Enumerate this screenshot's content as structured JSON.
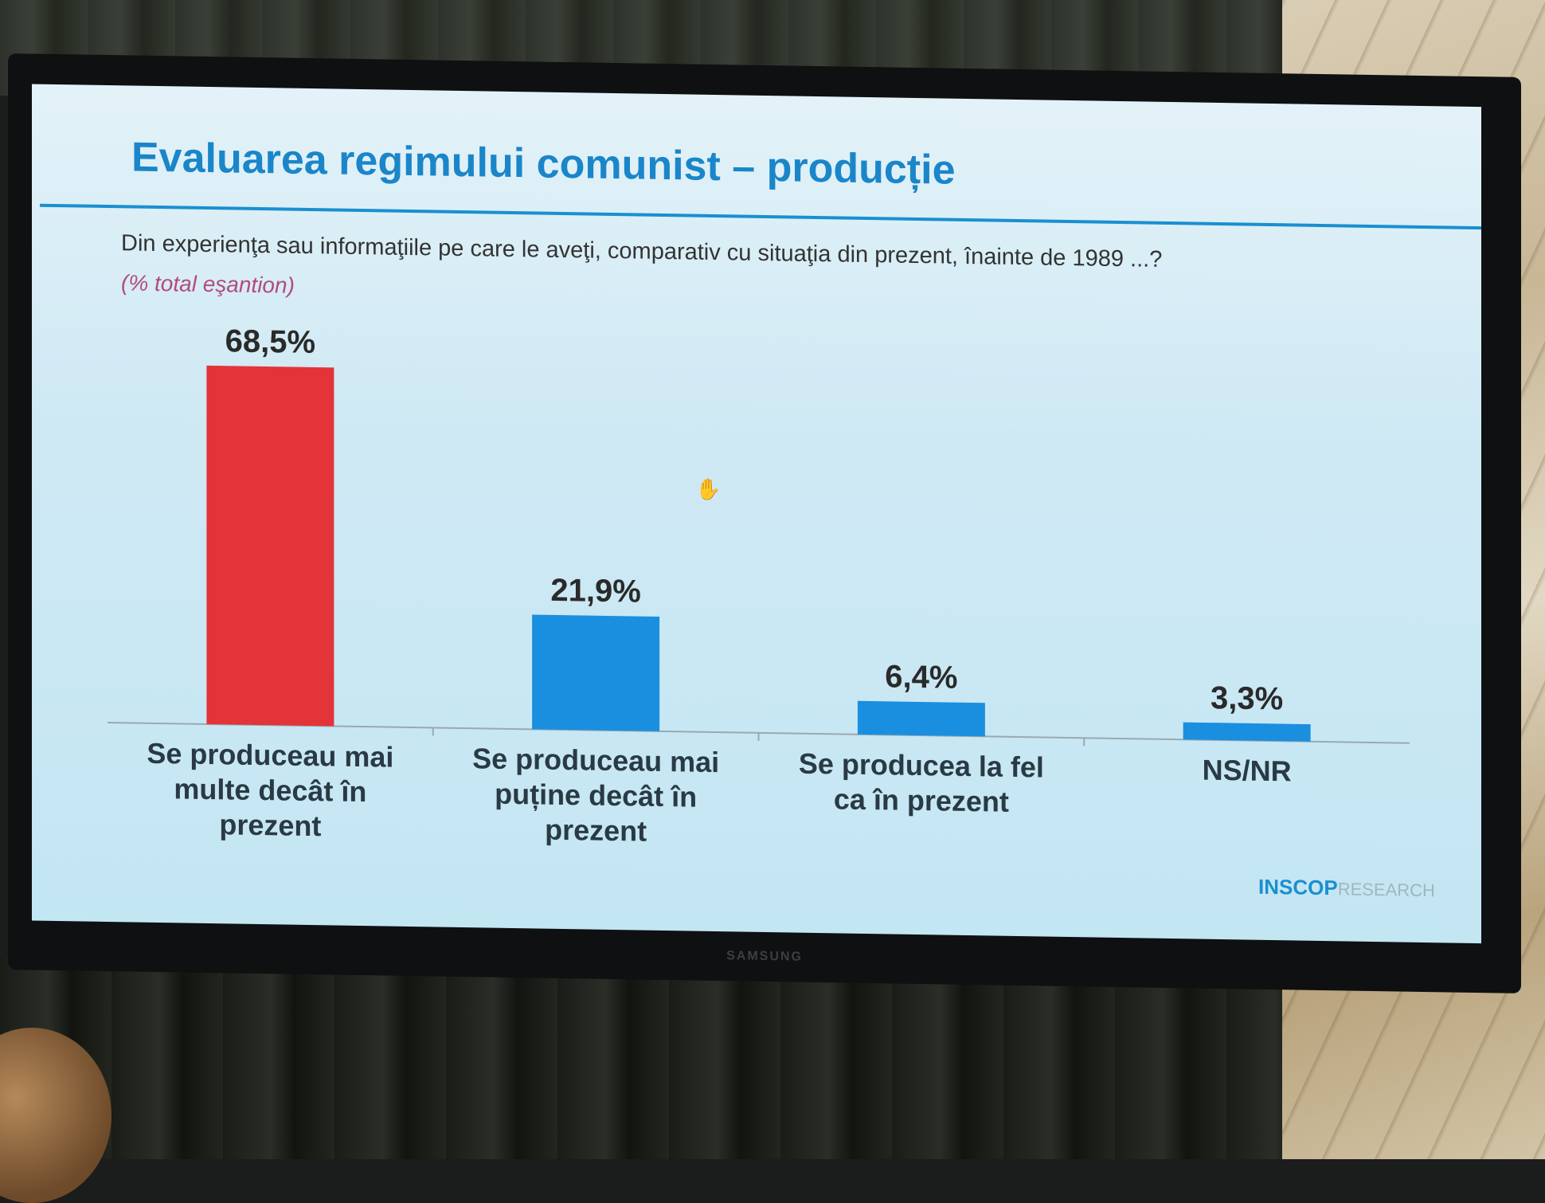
{
  "slide": {
    "title": "Evaluarea regimului comunist – producție",
    "question": "Din experienţa sau informaţiile pe care le aveţi, comparativ cu situaţia din prezent, înainte de 1989 ...?",
    "note": "(% total eşantion)",
    "logo_main": "INSCOP",
    "logo_sub": "RESEARCH",
    "brand": "SAMSUNG"
  },
  "chart_data": {
    "type": "bar",
    "categories": [
      "Se produceau mai multe decât în prezent",
      "Se produceau mai puține decât în prezent",
      "Se producea la fel ca în prezent",
      "NS/NR"
    ],
    "values": [
      68.5,
      21.9,
      6.4,
      3.3
    ],
    "value_labels": [
      "68,5%",
      "21,9%",
      "6,4%",
      "3,3%"
    ],
    "colors": [
      "#e3343a",
      "#1a8fe0",
      "#1a8fe0",
      "#1a8fe0"
    ],
    "ylim": [
      0,
      70
    ],
    "grid": false,
    "legend": "none"
  }
}
